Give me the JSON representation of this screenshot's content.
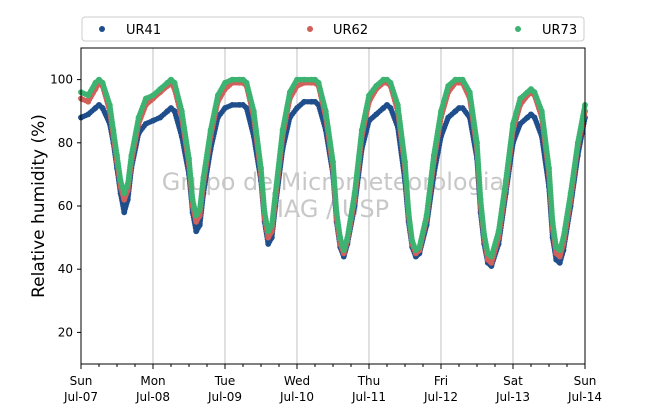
{
  "chart_data": {
    "type": "scatter",
    "ylabel": "Relative humidity (%)",
    "xlabel": "",
    "ylim": [
      10,
      110
    ],
    "yticks": [
      20,
      40,
      60,
      80,
      100
    ],
    "xlim": [
      0,
      7
    ],
    "xtick_labels": [
      [
        "Sun",
        "Jul-07"
      ],
      [
        "Mon",
        "Jul-08"
      ],
      [
        "Tue",
        "Jul-09"
      ],
      [
        "Wed",
        "Jul-10"
      ],
      [
        "Thu",
        "Jul-11"
      ],
      [
        "Fri",
        "Jul-12"
      ],
      [
        "Sat",
        "Jul-13"
      ],
      [
        "Sun",
        "Jul-14"
      ]
    ],
    "grid": "vertical",
    "legend": "top, horizontal",
    "watermark": [
      "Grupo de Micrometeorologia",
      "IAG / USP"
    ],
    "colors": {
      "UR41": "#1f4e8c",
      "UR62": "#d1605a",
      "UR73": "#3cb371"
    },
    "series": [
      {
        "name": "UR41",
        "x": [
          0.0,
          0.1,
          0.2,
          0.25,
          0.3,
          0.4,
          0.45,
          0.5,
          0.55,
          0.6,
          0.65,
          0.7,
          0.8,
          0.9,
          1.0,
          1.1,
          1.2,
          1.25,
          1.3,
          1.4,
          1.5,
          1.55,
          1.6,
          1.65,
          1.7,
          1.8,
          1.9,
          2.0,
          2.1,
          2.2,
          2.25,
          2.3,
          2.4,
          2.5,
          2.55,
          2.6,
          2.65,
          2.7,
          2.8,
          2.9,
          3.0,
          3.1,
          3.2,
          3.25,
          3.3,
          3.4,
          3.5,
          3.55,
          3.6,
          3.65,
          3.7,
          3.8,
          3.9,
          4.0,
          4.1,
          4.2,
          4.25,
          4.3,
          4.4,
          4.5,
          4.55,
          4.6,
          4.65,
          4.7,
          4.8,
          4.9,
          5.0,
          5.1,
          5.2,
          5.25,
          5.3,
          5.4,
          5.5,
          5.55,
          5.6,
          5.65,
          5.7,
          5.8,
          5.9,
          6.0,
          6.1,
          6.2,
          6.25,
          6.3,
          6.4,
          6.5,
          6.55,
          6.6,
          6.65,
          6.7,
          6.8,
          6.9,
          7.0
        ],
        "values": [
          88,
          89,
          91,
          92,
          91,
          86,
          80,
          72,
          64,
          58,
          62,
          72,
          83,
          86,
          87,
          88,
          90,
          91,
          90,
          82,
          70,
          58,
          52,
          54,
          64,
          78,
          88,
          91,
          92,
          92,
          92,
          91,
          82,
          68,
          55,
          48,
          50,
          60,
          78,
          88,
          91,
          93,
          93,
          93,
          92,
          84,
          70,
          55,
          47,
          44,
          48,
          60,
          78,
          87,
          89,
          91,
          92,
          91,
          85,
          68,
          55,
          47,
          44,
          45,
          54,
          70,
          82,
          88,
          90,
          91,
          91,
          88,
          75,
          58,
          48,
          42,
          41,
          48,
          64,
          80,
          86,
          88,
          89,
          88,
          82,
          66,
          50,
          43,
          42,
          46,
          60,
          76,
          88
        ]
      },
      {
        "name": "UR62",
        "x": [
          0.0,
          0.1,
          0.2,
          0.25,
          0.3,
          0.4,
          0.45,
          0.5,
          0.55,
          0.6,
          0.65,
          0.7,
          0.8,
          0.9,
          1.0,
          1.1,
          1.2,
          1.25,
          1.3,
          1.4,
          1.5,
          1.55,
          1.6,
          1.65,
          1.7,
          1.8,
          1.9,
          2.0,
          2.1,
          2.2,
          2.25,
          2.3,
          2.4,
          2.5,
          2.55,
          2.6,
          2.65,
          2.7,
          2.8,
          2.9,
          3.0,
          3.1,
          3.2,
          3.25,
          3.3,
          3.4,
          3.5,
          3.55,
          3.6,
          3.65,
          3.7,
          3.8,
          3.9,
          4.0,
          4.1,
          4.2,
          4.25,
          4.3,
          4.4,
          4.5,
          4.55,
          4.6,
          4.65,
          4.7,
          4.8,
          4.9,
          5.0,
          5.1,
          5.2,
          5.25,
          5.3,
          5.4,
          5.5,
          5.55,
          5.6,
          5.65,
          5.7,
          5.8,
          5.9,
          6.0,
          6.1,
          6.2,
          6.25,
          6.3,
          6.4,
          6.5,
          6.55,
          6.6,
          6.65,
          6.7,
          6.8,
          6.9,
          7.0
        ],
        "values": [
          94,
          93,
          97,
          99,
          98,
          90,
          82,
          74,
          66,
          62,
          65,
          74,
          86,
          92,
          94,
          96,
          98,
          99,
          97,
          88,
          73,
          60,
          55,
          57,
          67,
          82,
          93,
          97,
          99,
          99,
          99,
          98,
          88,
          70,
          56,
          50,
          52,
          62,
          82,
          94,
          98,
          99,
          99,
          99,
          98,
          88,
          72,
          56,
          48,
          45,
          49,
          62,
          82,
          93,
          97,
          99,
          99,
          98,
          90,
          72,
          57,
          48,
          45,
          46,
          56,
          74,
          88,
          96,
          99,
          99,
          99,
          94,
          78,
          60,
          50,
          43,
          42,
          50,
          66,
          84,
          92,
          95,
          96,
          95,
          88,
          70,
          53,
          45,
          44,
          48,
          62,
          79,
          90
        ]
      },
      {
        "name": "UR73",
        "x": [
          0.0,
          0.1,
          0.2,
          0.25,
          0.3,
          0.4,
          0.45,
          0.5,
          0.55,
          0.6,
          0.65,
          0.7,
          0.8,
          0.9,
          1.0,
          1.1,
          1.2,
          1.25,
          1.3,
          1.4,
          1.5,
          1.55,
          1.6,
          1.65,
          1.7,
          1.8,
          1.9,
          2.0,
          2.1,
          2.2,
          2.25,
          2.3,
          2.4,
          2.5,
          2.55,
          2.6,
          2.65,
          2.7,
          2.8,
          2.9,
          3.0,
          3.1,
          3.2,
          3.25,
          3.3,
          3.4,
          3.5,
          3.55,
          3.6,
          3.65,
          3.7,
          3.8,
          3.9,
          4.0,
          4.1,
          4.2,
          4.25,
          4.3,
          4.4,
          4.5,
          4.55,
          4.6,
          4.65,
          4.7,
          4.8,
          4.9,
          5.0,
          5.1,
          5.2,
          5.25,
          5.3,
          5.4,
          5.5,
          5.55,
          5.6,
          5.65,
          5.7,
          5.8,
          5.9,
          6.0,
          6.1,
          6.2,
          6.25,
          6.3,
          6.4,
          6.5,
          6.55,
          6.6,
          6.65,
          6.7,
          6.8,
          6.9,
          7.0
        ],
        "values": [
          96,
          95,
          99,
          100,
          99,
          92,
          84,
          76,
          68,
          64,
          67,
          76,
          88,
          94,
          95,
          97,
          99,
          100,
          99,
          90,
          75,
          62,
          57,
          59,
          69,
          84,
          95,
          99,
          100,
          100,
          100,
          99,
          90,
          72,
          58,
          52,
          54,
          64,
          84,
          96,
          100,
          100,
          100,
          100,
          99,
          90,
          74,
          58,
          50,
          46,
          50,
          64,
          84,
          95,
          98,
          100,
          100,
          99,
          92,
          74,
          58,
          49,
          46,
          47,
          57,
          76,
          90,
          98,
          100,
          100,
          100,
          96,
          80,
          62,
          51,
          45,
          44,
          52,
          68,
          86,
          94,
          96,
          97,
          96,
          90,
          72,
          55,
          47,
          46,
          50,
          64,
          80,
          92
        ]
      }
    ]
  }
}
